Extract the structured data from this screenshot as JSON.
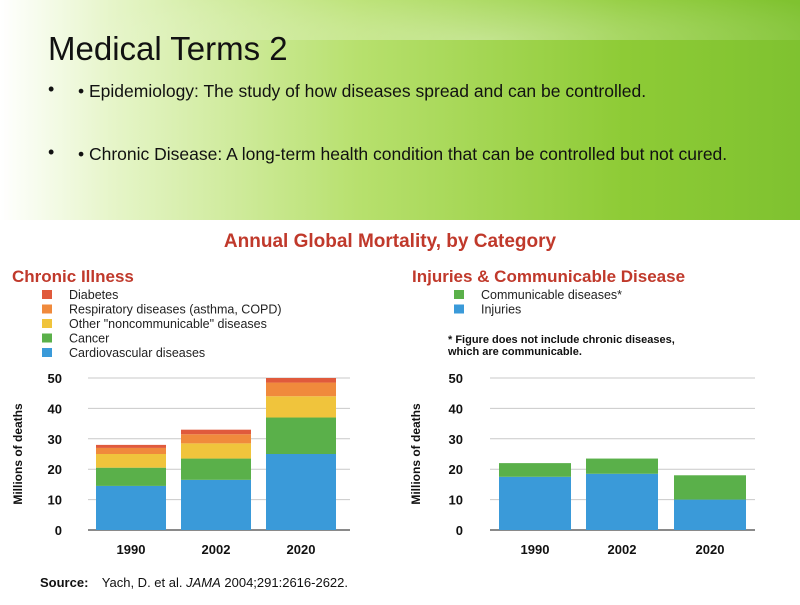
{
  "slide": {
    "title": "Medical Terms 2",
    "bullets": [
      {
        "marker": "•",
        "text": "• Epidemiology: The study of how diseases spread and can be controlled."
      },
      {
        "marker": "•",
        "text": "• Chronic Disease: A long-term health condition that can be controlled but not cured."
      }
    ]
  },
  "figure": {
    "title": "Annual Global Mortality, by Category",
    "footnote": "* Figure does not include chronic diseases, which are communicable.",
    "source_label": "Source:",
    "source_text": "Yach, D. et al. ",
    "source_journal": "JAMA",
    "source_ref": " 2004;291:2616-2622."
  },
  "colors": {
    "title_red": "#c0392b",
    "diabetes": "#e05a3c",
    "respiratory": "#f08a3c",
    "other": "#f0c43c",
    "cancer": "#5ab04a",
    "cardio": "#3a9ad9",
    "communicable": "#5ab04a",
    "injuries": "#3a9ad9"
  },
  "chart_data": [
    {
      "type": "bar",
      "stacked": true,
      "title": "Chronic Illness",
      "categories": [
        "1990",
        "2002",
        "2020"
      ],
      "ylabel": "Millions of deaths",
      "xlabel": "",
      "ylim": [
        0,
        50
      ],
      "yticks": [
        0,
        10,
        20,
        30,
        40,
        50
      ],
      "grid": true,
      "legend_position": "top-left",
      "series": [
        {
          "name": "Cardiovascular diseases",
          "color": "#3a9ad9",
          "values": [
            14.5,
            16.5,
            25
          ]
        },
        {
          "name": "Cancer",
          "color": "#5ab04a",
          "values": [
            6,
            7,
            12
          ]
        },
        {
          "name": "Other \"noncommunicable\" diseases",
          "color": "#f0c43c",
          "values": [
            4.5,
            5,
            7
          ]
        },
        {
          "name": "Respiratory diseases (asthma, COPD)",
          "color": "#f08a3c",
          "values": [
            2,
            3,
            4.5
          ]
        },
        {
          "name": "Diabetes",
          "color": "#e05a3c",
          "values": [
            1,
            1.5,
            1.5
          ]
        }
      ],
      "legend_order": [
        "Diabetes",
        "Respiratory diseases (asthma, COPD)",
        "Other \"noncommunicable\" diseases",
        "Cancer",
        "Cardiovascular diseases"
      ]
    },
    {
      "type": "bar",
      "stacked": true,
      "title": "Injuries & Communicable Disease",
      "categories": [
        "1990",
        "2002",
        "2020"
      ],
      "ylabel": "Millions of deaths",
      "xlabel": "",
      "ylim": [
        0,
        50
      ],
      "yticks": [
        0,
        10,
        20,
        30,
        40,
        50
      ],
      "grid": true,
      "legend_position": "top-left",
      "series": [
        {
          "name": "Injuries",
          "color": "#3a9ad9",
          "values": [
            17.5,
            18.5,
            10
          ]
        },
        {
          "name": "Communicable diseases*",
          "color": "#5ab04a",
          "values": [
            4.5,
            5,
            8
          ]
        }
      ],
      "legend_order": [
        "Communicable diseases*",
        "Injuries"
      ]
    }
  ]
}
